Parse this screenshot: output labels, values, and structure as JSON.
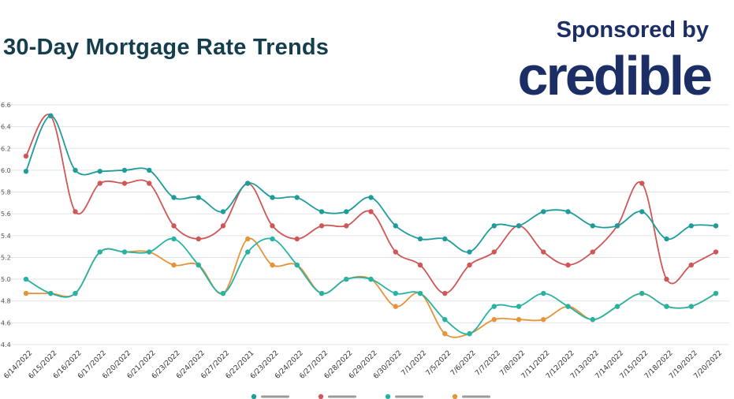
{
  "header": {
    "title": "30-Day Mortgage Rate Trends",
    "sponsored": "Sponsored by",
    "brand": "credible"
  },
  "colors": {
    "teal": "#1e9c9a",
    "red": "#cf5757",
    "green": "#26b3a3",
    "orange": "#e6933a",
    "title": "#143d4d",
    "brand": "#1c2e66"
  },
  "chart_data": {
    "type": "line",
    "title": "30-Day Mortgage Rate Trends",
    "xlabel": "",
    "ylabel": "",
    "ylim": [
      4.4,
      6.6
    ],
    "yticks": [
      "4.4",
      "4.6",
      "4.8",
      "5.0",
      "5.2",
      "5.4",
      "5.6",
      "5.8",
      "6.0",
      "6.2",
      "6.4",
      "6.6"
    ],
    "grid": true,
    "legend_position": "bottom",
    "categories": [
      "6/14/2022",
      "6/15/2022",
      "6/16/2022",
      "6/17/2022",
      "6/20/2022",
      "6/21/2022",
      "6/23/2022",
      "6/24/2022",
      "6/27/2022",
      "6/22/2021",
      "6/23/2022",
      "6/24/2022",
      "6/27/2022",
      "6/28/2022",
      "6/29/2022",
      "6/30/2022",
      "7/1/2022",
      "7/5/2022",
      "7/6/2022",
      "7/7/2022",
      "7/8/2022",
      "7/11/2022",
      "7/12/2022",
      "7/13/2022",
      "7/14/2022",
      "7/15/2022",
      "7/18/2022",
      "7/19/2022",
      "7/20/2022"
    ],
    "series": [
      {
        "color": "#1e9c9a",
        "values": [
          5.99,
          6.5,
          6.0,
          5.99,
          6.0,
          6.0,
          5.75,
          5.75,
          5.62,
          5.88,
          5.75,
          5.75,
          5.62,
          5.62,
          5.75,
          5.49,
          5.37,
          5.37,
          5.25,
          5.49,
          5.49,
          5.62,
          5.62,
          5.49,
          5.49,
          5.62,
          5.37,
          5.49,
          5.49
        ]
      },
      {
        "color": "#cf5757",
        "values": [
          6.13,
          6.5,
          5.62,
          5.88,
          5.88,
          5.88,
          5.49,
          5.37,
          5.49,
          5.88,
          5.49,
          5.37,
          5.49,
          5.49,
          5.62,
          5.25,
          5.13,
          4.87,
          5.13,
          5.25,
          5.49,
          5.25,
          5.13,
          5.25,
          5.49,
          5.88,
          5.0,
          5.13,
          5.25
        ]
      },
      {
        "color": "#26b3a3",
        "values": [
          5.0,
          4.87,
          4.87,
          5.25,
          5.25,
          5.25,
          5.37,
          5.13,
          4.87,
          5.25,
          5.37,
          5.13,
          4.87,
          5.0,
          5.0,
          4.87,
          4.87,
          4.63,
          4.5,
          4.75,
          4.75,
          4.87,
          4.75,
          4.63,
          4.75,
          4.87,
          4.75,
          4.75,
          4.87
        ]
      },
      {
        "color": "#e6933a",
        "values": [
          4.87,
          4.87,
          4.87,
          5.25,
          5.25,
          5.25,
          5.13,
          5.13,
          4.87,
          5.37,
          5.13,
          5.13,
          4.87,
          5.0,
          5.0,
          4.75,
          4.87,
          4.5,
          4.5,
          4.63,
          4.63,
          4.63,
          4.75,
          4.63,
          4.75,
          4.87,
          4.75,
          4.75,
          4.87
        ]
      }
    ]
  }
}
